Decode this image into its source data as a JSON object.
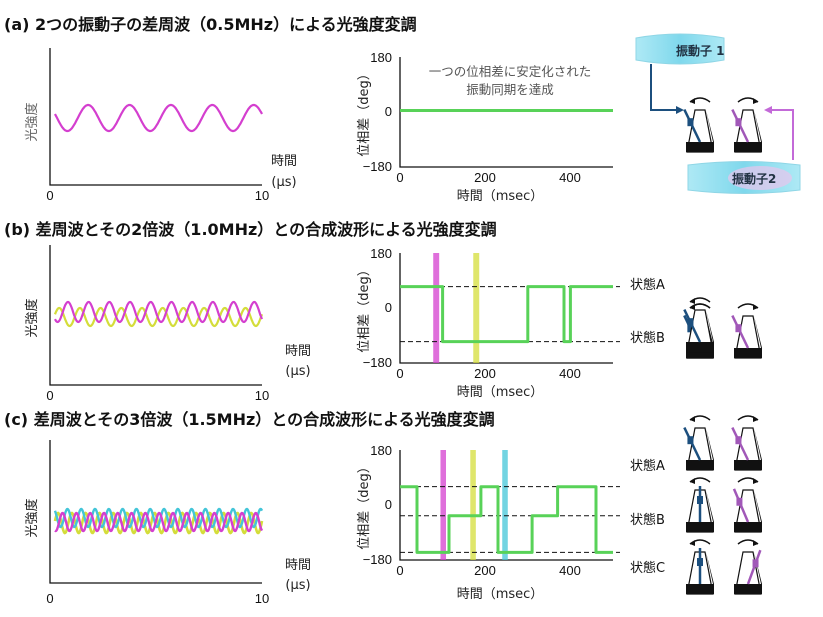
{
  "colors": {
    "magenta": "#d43fcf",
    "yellow": "#d4dd3a",
    "cyan": "#43c5d8",
    "green": "#58d258",
    "navy": "#1c4f7e",
    "violet": "#a158b8"
  },
  "panels": [
    {
      "tag": "(a)",
      "title": "2つの振動子の差周波（0.5MHz）による光強度変調"
    },
    {
      "tag": "(b)",
      "title": "差周波とその2倍波（1.0MHz）との合成波形による光強度変調"
    },
    {
      "tag": "(c)",
      "title": "差周波とその3倍波（1.5MHz）との合成波形による光強度変調"
    }
  ],
  "left_axis": {
    "ylabel": "光強度",
    "xlabel_1": "時間",
    "xlabel_2": "(μs)",
    "x_ticks": [
      "0",
      "10"
    ]
  },
  "right_axis": {
    "ylabel": "位相差（deg）",
    "xlabel": "時間（msec）",
    "x_ticks": [
      "0",
      "200",
      "400"
    ],
    "y_ticks": [
      "180",
      "0",
      "−180"
    ]
  },
  "annotation_a": [
    "一つの位相差に安定化された",
    "振動同期を達成"
  ],
  "states": {
    "a": "状態A",
    "b": "状態B",
    "c": "状態C"
  },
  "oscillators": {
    "one": "振動子 1",
    "two": "振動子2"
  },
  "chart_data": [
    {
      "type": "line",
      "panel": "a-left",
      "xlim": [
        0,
        10
      ],
      "series": [
        {
          "color": "magenta",
          "waveform": "sin",
          "cycles": 5
        }
      ]
    },
    {
      "type": "line",
      "panel": "a-right",
      "xlim": [
        0,
        500
      ],
      "ylim": [
        -180,
        180
      ],
      "series": [
        {
          "color": "green",
          "x": [
            0,
            500
          ],
          "y": [
            5,
            5
          ]
        }
      ]
    },
    {
      "type": "line",
      "panel": "b-left",
      "xlim": [
        0,
        10
      ],
      "series": [
        {
          "color": "magenta",
          "cycles": 10
        },
        {
          "color": "yellow",
          "cycles": 10
        }
      ]
    },
    {
      "type": "line",
      "panel": "b-right",
      "xlim": [
        0,
        500
      ],
      "ylim": [
        -180,
        180
      ],
      "levels": [
        {
          "state": "状態A",
          "y": 70
        },
        {
          "state": "状態B",
          "y": -110
        }
      ],
      "segments": [
        [
          0,
          70
        ],
        [
          100,
          70
        ],
        [
          100,
          -110
        ],
        [
          300,
          -110
        ],
        [
          300,
          70
        ],
        [
          385,
          70
        ],
        [
          385,
          -110
        ],
        [
          400,
          -110
        ],
        [
          400,
          70
        ],
        [
          500,
          70
        ]
      ],
      "highlights": [
        {
          "x": [
            78,
            92
          ],
          "color": "magenta"
        },
        {
          "x": [
            172,
            186
          ],
          "color": "yellow"
        }
      ]
    },
    {
      "type": "line",
      "panel": "c-left",
      "xlim": [
        0,
        10
      ],
      "series": [
        {
          "color": "magenta",
          "cycles": 15
        },
        {
          "color": "yellow",
          "cycles": 15
        },
        {
          "color": "cyan",
          "cycles": 15
        }
      ]
    },
    {
      "type": "line",
      "panel": "c-right",
      "xlim": [
        0,
        500
      ],
      "ylim": [
        -180,
        180
      ],
      "levels": [
        {
          "state": "状態A",
          "y": 60
        },
        {
          "state": "状態B",
          "y": -35
        },
        {
          "state": "状態C",
          "y": -155
        }
      ],
      "segments": [
        [
          0,
          60
        ],
        [
          40,
          60
        ],
        [
          40,
          -155
        ],
        [
          115,
          -155
        ],
        [
          115,
          -35
        ],
        [
          190,
          -35
        ],
        [
          190,
          60
        ],
        [
          230,
          60
        ],
        [
          230,
          -155
        ],
        [
          310,
          -155
        ],
        [
          310,
          -35
        ],
        [
          370,
          -35
        ],
        [
          370,
          60
        ],
        [
          460,
          60
        ],
        [
          460,
          -155
        ],
        [
          500,
          -155
        ]
      ],
      "highlights": [
        {
          "x": [
            95,
            108
          ],
          "color": "magenta"
        },
        {
          "x": [
            165,
            178
          ],
          "color": "yellow"
        },
        {
          "x": [
            240,
            253
          ],
          "color": "cyan"
        }
      ]
    }
  ]
}
